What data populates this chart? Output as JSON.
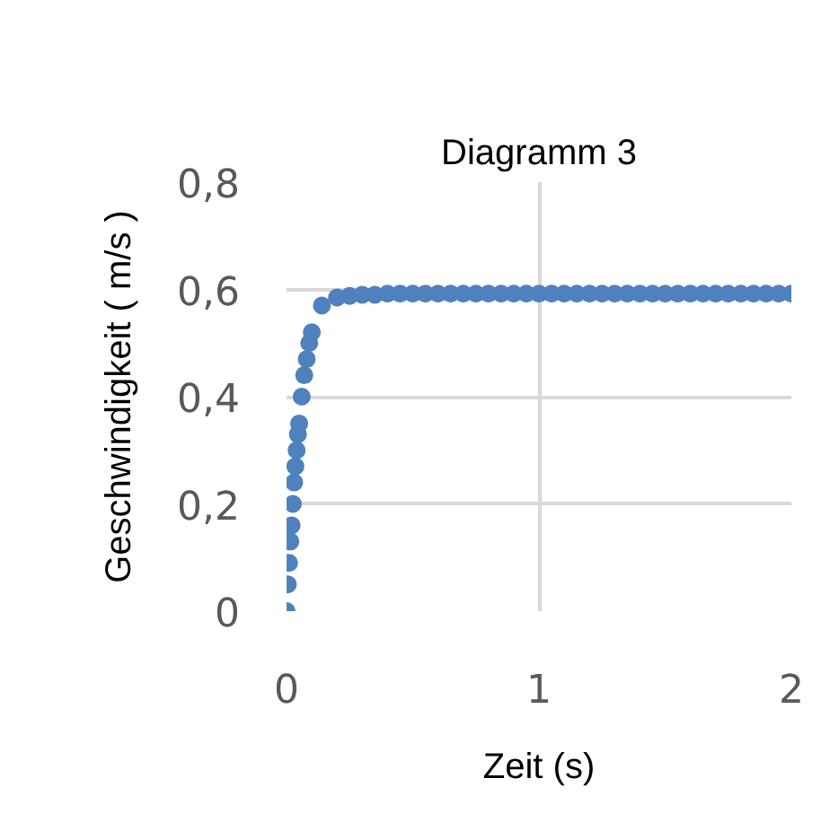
{
  "chart_data": {
    "type": "scatter",
    "title": "Diagramm 3",
    "xlabel": "Zeit (s)",
    "ylabel": "Geschwindigkeit ( m/s )",
    "xlim": [
      0,
      2
    ],
    "ylim": [
      0,
      0.8
    ],
    "xticks": [
      0,
      1,
      2
    ],
    "yticks": [
      {
        "value": 0,
        "label": "0"
      },
      {
        "value": 0.2,
        "label": "0,2"
      },
      {
        "value": 0.4,
        "label": "0,4"
      },
      {
        "value": 0.6,
        "label": "0,6"
      },
      {
        "value": 0.8,
        "label": "0,8"
      }
    ],
    "grid": true,
    "marker": "circle",
    "series": [
      {
        "color": "#4f81bd",
        "x": [
          0,
          0.005,
          0.01,
          0.015,
          0.02,
          0.025,
          0.03,
          0.035,
          0.04,
          0.045,
          0.05,
          0.06,
          0.07,
          0.08,
          0.09,
          0.1,
          0.14,
          0.2,
          0.25,
          0.3,
          0.35,
          0.4,
          0.45,
          0.5,
          0.55,
          0.6,
          0.65,
          0.7,
          0.75,
          0.8,
          0.85,
          0.9,
          0.95,
          1.0,
          1.05,
          1.1,
          1.15,
          1.2,
          1.25,
          1.3,
          1.35,
          1.4,
          1.45,
          1.5,
          1.55,
          1.6,
          1.65,
          1.7,
          1.75,
          1.8,
          1.85,
          1.9,
          1.95,
          2.0
        ],
        "values": [
          0,
          0.05,
          0.09,
          0.13,
          0.16,
          0.2,
          0.24,
          0.27,
          0.3,
          0.33,
          0.35,
          0.4,
          0.44,
          0.47,
          0.5,
          0.52,
          0.57,
          0.585,
          0.588,
          0.59,
          0.59,
          0.592,
          0.592,
          0.592,
          0.592,
          0.592,
          0.592,
          0.592,
          0.592,
          0.592,
          0.592,
          0.592,
          0.592,
          0.592,
          0.592,
          0.592,
          0.592,
          0.592,
          0.592,
          0.592,
          0.592,
          0.592,
          0.592,
          0.592,
          0.592,
          0.592,
          0.592,
          0.592,
          0.592,
          0.592,
          0.592,
          0.592,
          0.592,
          0.592
        ]
      }
    ]
  }
}
